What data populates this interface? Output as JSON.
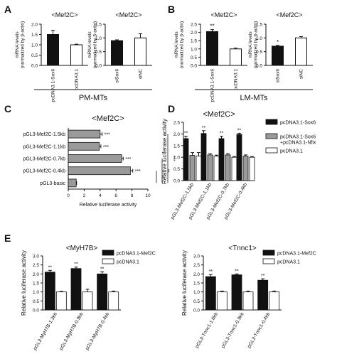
{
  "figure": {
    "panel_letters": [
      "A",
      "B",
      "C",
      "D",
      "E"
    ],
    "group_labels": {
      "a": "PM-MTs",
      "b": "LM-MTs"
    }
  },
  "colors": {
    "black": "#111111",
    "gray": "#9a9a9a",
    "white": "#ffffff"
  },
  "chart_data": [
    {
      "id": "A1",
      "type": "bar",
      "title": "<Mef2C>",
      "ylabel": "mRNA levels\n(normalized by β-actin)",
      "ylim": [
        0,
        2
      ],
      "yticks": [
        0,
        0.5,
        1,
        1.5,
        2
      ],
      "ytick_labels": [
        "0.0",
        "0.5",
        "1.0",
        "1.5",
        "2.0"
      ],
      "categories": [
        "pcDNA3.1-Sox6",
        "pcDNA3.1"
      ],
      "values": [
        1.5,
        1.0
      ],
      "errors": [
        0.2,
        0.03
      ],
      "fills": [
        "black",
        "white"
      ],
      "significance": [
        "",
        ""
      ]
    },
    {
      "id": "A2",
      "type": "bar",
      "title": "<Mef2C>",
      "ylabel": "mRNA levels\n(normalized by β-actin)",
      "ylim": [
        0,
        1.5
      ],
      "yticks": [
        0,
        0.5,
        1,
        1.5
      ],
      "ytick_labels": [
        "0.0",
        "0.5",
        "1.0",
        "1.5"
      ],
      "categories": [
        "siSox6",
        "siNC"
      ],
      "values": [
        0.9,
        1.0
      ],
      "errors": [
        0.03,
        0.15
      ],
      "fills": [
        "black",
        "white"
      ],
      "significance": [
        "",
        ""
      ]
    },
    {
      "id": "B1",
      "type": "bar",
      "title": "<Mef2C>",
      "ylabel": "mRNA levels\n(normalized by β-actin)",
      "ylim": [
        0,
        2.5
      ],
      "yticks": [
        0,
        0.5,
        1,
        1.5,
        2,
        2.5
      ],
      "ytick_labels": [
        "0.0",
        "0.5",
        "1.0",
        "1.5",
        "2.0",
        "2.5"
      ],
      "categories": [
        "pcDNA3.1-Sox6",
        "pcDNA3.1"
      ],
      "values": [
        2.05,
        1.0
      ],
      "errors": [
        0.12,
        0.05
      ],
      "fills": [
        "black",
        "white"
      ],
      "significance": [
        "**",
        ""
      ]
    },
    {
      "id": "B2",
      "type": "bar",
      "title": "<Mef2C>",
      "ylabel": "mRNA levels\n(normalized by β-actin)",
      "ylim": [
        0,
        1.5
      ],
      "yticks": [
        0,
        0.5,
        1,
        1.5
      ],
      "ytick_labels": [
        "0.0",
        "0.5",
        "1.0",
        "1.5"
      ],
      "categories": [
        "siSox6",
        "siNC"
      ],
      "values": [
        0.7,
        1.0
      ],
      "errors": [
        0.03,
        0.05
      ],
      "fills": [
        "black",
        "white"
      ],
      "significance": [
        "*",
        ""
      ]
    },
    {
      "id": "C",
      "type": "bar",
      "orientation": "horizontal",
      "title": "<Mef2C>",
      "xlabel": "Relative luciferase activity",
      "xlim": [
        0,
        10
      ],
      "xticks": [
        0,
        2,
        4,
        6,
        8,
        10
      ],
      "xtick_labels": [
        "0",
        "2",
        "4",
        "6",
        "8",
        "10"
      ],
      "categories": [
        "pGL3-Mef2C-1.5kb",
        "pGL3-Mef2C-1.1kb",
        "pGL3-Mef2C-0.7kb",
        "pGL3-Mef2C-0.4kb",
        "pGL3-basic"
      ],
      "values": [
        4.0,
        3.9,
        6.7,
        7.8,
        1.0
      ],
      "errors": [
        0.25,
        0.2,
        0.2,
        0.3,
        0.05
      ],
      "significance": [
        "***",
        "***",
        "***",
        "***",
        ""
      ],
      "brackets": [
        "***",
        "**",
        "**"
      ]
    },
    {
      "id": "D",
      "type": "bar",
      "title": "<Mef2C>",
      "ylabel": "Relative luciferase activity",
      "ylim": [
        0,
        2.5
      ],
      "yticks": [
        0,
        0.5,
        1,
        1.5,
        2,
        2.5
      ],
      "ytick_labels": [
        "0.0",
        "0.5",
        "1.0",
        "1.5",
        "2.0",
        "2.5"
      ],
      "categories": [
        "pGL3-Mef2C-1.5kb",
        "pGL3-Mef2C-1.1kb",
        "pGL3-Mef2C-0.7kb",
        "pGL3-Mef2C-0.4kb"
      ],
      "series": [
        {
          "name": "pcDNA3.1-Sox6",
          "fill": "black",
          "values": [
            1.8,
            2.02,
            1.8,
            1.98
          ],
          "errors": [
            0.1,
            0.12,
            0.1,
            0.05
          ],
          "significance": [
            "**",
            "**",
            "**",
            "**"
          ]
        },
        {
          "name": "pcDNA3.1-Sox6\n+pcDNA3.1-Nfix",
          "fill": "gray",
          "values": [
            1.08,
            1.1,
            1.1,
            1.05
          ],
          "errors": [
            0.12,
            0.05,
            0.05,
            0.05
          ]
        },
        {
          "name": "pcDNA3.1",
          "fill": "white",
          "values": [
            1.05,
            1.05,
            1.0,
            1.0
          ],
          "errors": [
            0.15,
            0.04,
            0.03,
            0.03
          ]
        }
      ],
      "legend": "right"
    },
    {
      "id": "E1",
      "type": "bar",
      "title": "<MyH7B>",
      "ylabel": "Relative luciferase activity",
      "ylim": [
        0,
        3.0
      ],
      "yticks": [
        0,
        0.5,
        1,
        1.5,
        2,
        2.5,
        3
      ],
      "ytick_labels": [
        "0.0",
        "0.5",
        "1.0",
        "1.5",
        "2.0",
        "2.5",
        "3.0"
      ],
      "categories": [
        "pGL3-MyH7B-1.3kb",
        "pGL3-MyH7B-0.9kb",
        "pGL3-MyH7B-0.4kb"
      ],
      "series": [
        {
          "name": "pcDNA3.1-Mef2C",
          "fill": "black",
          "values": [
            2.1,
            2.3,
            2.0
          ],
          "errors": [
            0.1,
            0.08,
            0.12
          ],
          "significance": [
            "**",
            "**",
            "**"
          ]
        },
        {
          "name": "pcDNA3.1",
          "fill": "white",
          "values": [
            1.0,
            1.0,
            1.0
          ],
          "errors": [
            0.03,
            0.15,
            0.05
          ]
        }
      ],
      "legend": "top-right"
    },
    {
      "id": "E2",
      "type": "bar",
      "title": "<Tnnc1>",
      "ylabel": "Relative luciferase activity",
      "ylim": [
        0,
        3.0
      ],
      "yticks": [
        0,
        0.5,
        1,
        1.5,
        2,
        2.5,
        3
      ],
      "ytick_labels": [
        "0.0",
        "0.5",
        "1.0",
        "1.5",
        "2.0",
        "2.5",
        "3.0"
      ],
      "categories": [
        "pGL3-Tnnc1-1.6kb",
        "pGL3-Tnnc1-0.9kb",
        "pGL3-Tnnc1-0.4kb"
      ],
      "series": [
        {
          "name": "pcDNA3.1-Mef2C",
          "fill": "black",
          "values": [
            1.85,
            1.95,
            1.65
          ],
          "errors": [
            0.12,
            0.05,
            0.08
          ],
          "significance": [
            "**",
            "**",
            "**"
          ]
        },
        {
          "name": "pcDNA3.1",
          "fill": "white",
          "values": [
            1.0,
            1.0,
            1.0
          ],
          "errors": [
            0.05,
            0.05,
            0.05
          ]
        }
      ],
      "legend": "top-right"
    }
  ]
}
